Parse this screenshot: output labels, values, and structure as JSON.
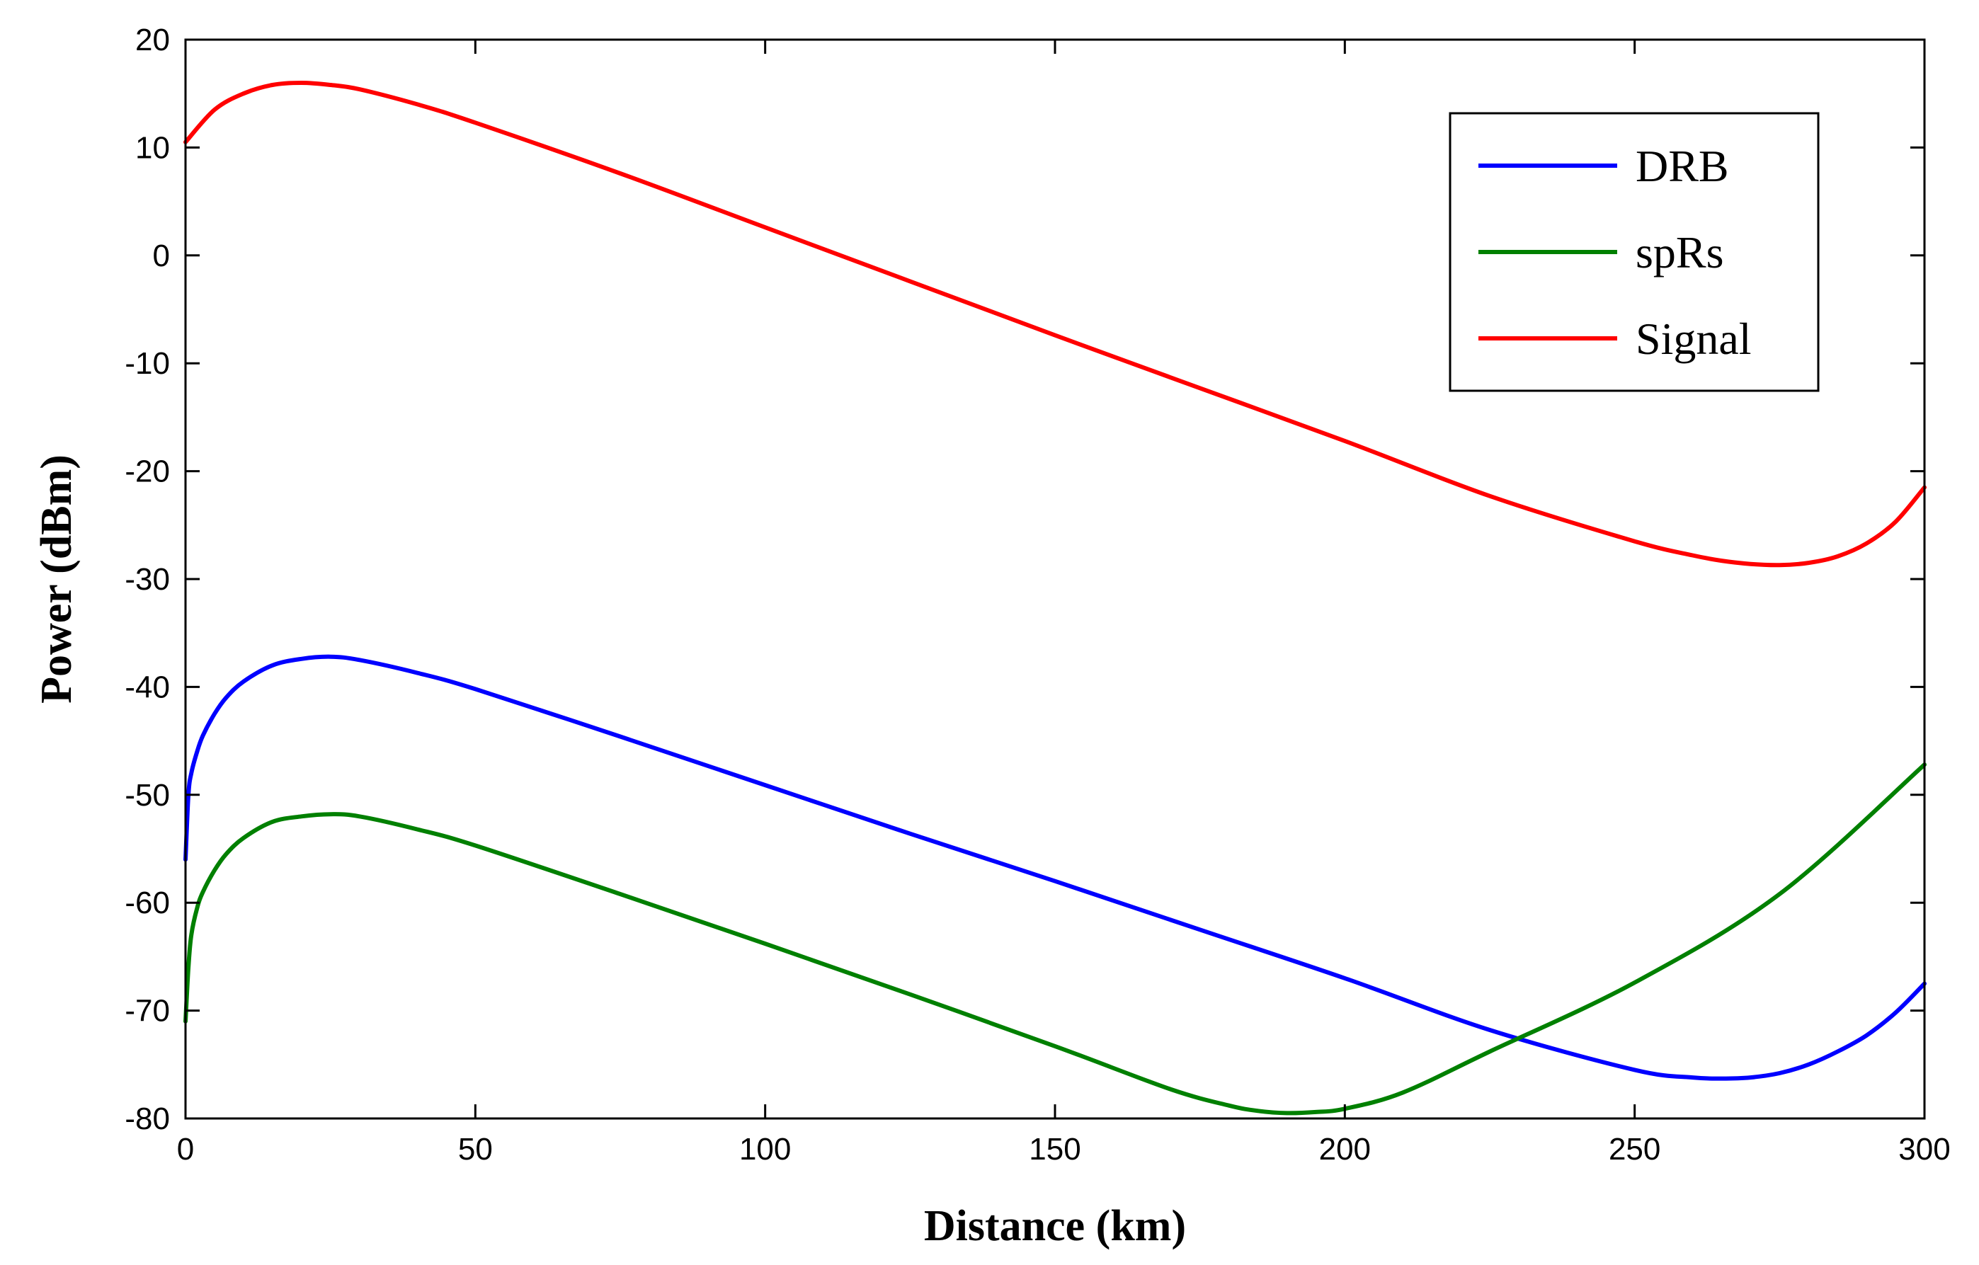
{
  "chart_data": {
    "type": "line",
    "title": "",
    "xlabel": "Distance (km)",
    "ylabel": "Power (dBm)",
    "xlim": [
      0,
      300
    ],
    "ylim": [
      -80,
      20
    ],
    "xticks": [
      0,
      50,
      100,
      150,
      200,
      250,
      300
    ],
    "yticks": [
      20,
      10,
      0,
      -10,
      -20,
      -30,
      -40,
      -50,
      -60,
      -70,
      -80
    ],
    "grid": false,
    "legend_position": "top-right",
    "series": [
      {
        "name": "DRB",
        "color": "#0000ff",
        "x": [
          0,
          0.5,
          1,
          2,
          3,
          5,
          7,
          10,
          15,
          20,
          25,
          30,
          40,
          50,
          75,
          100,
          125,
          150,
          175,
          200,
          225,
          250,
          260,
          265,
          270,
          275,
          280,
          285,
          290,
          295,
          300
        ],
        "y": [
          -56,
          -50,
          -48,
          -46,
          -44.5,
          -42.5,
          -41,
          -39.5,
          -38,
          -37.4,
          -37.2,
          -37.5,
          -38.7,
          -40.2,
          -44.6,
          -49.1,
          -53.6,
          -58,
          -62.5,
          -67,
          -71.8,
          -75.5,
          -76.2,
          -76.3,
          -76.2,
          -75.8,
          -75,
          -73.8,
          -72.3,
          -70.2,
          -67.5
        ]
      },
      {
        "name": "spRs",
        "color": "#008000",
        "x": [
          0,
          0.5,
          1,
          2,
          3,
          5,
          7,
          10,
          15,
          20,
          25,
          30,
          40,
          50,
          75,
          100,
          125,
          150,
          170,
          180,
          185,
          190,
          195,
          200,
          210,
          225,
          250,
          275,
          300
        ],
        "y": [
          -71,
          -66,
          -63,
          -60.5,
          -59,
          -57,
          -55.5,
          -54,
          -52.5,
          -52,
          -51.8,
          -52,
          -53.2,
          -54.7,
          -59.2,
          -63.8,
          -68.5,
          -73.3,
          -77.3,
          -78.8,
          -79.3,
          -79.5,
          -79.4,
          -79.1,
          -77.6,
          -73.8,
          -67.4,
          -59.2,
          -47.2
        ]
      },
      {
        "name": "Signal",
        "color": "#ff0000",
        "x": [
          0,
          5,
          10,
          15,
          20,
          25,
          30,
          40,
          50,
          75,
          100,
          125,
          150,
          175,
          200,
          225,
          250,
          260,
          265,
          270,
          275,
          280,
          285,
          290,
          295,
          300
        ],
        "y": [
          10.5,
          13.5,
          15,
          15.8,
          16,
          15.8,
          15.4,
          14,
          12.3,
          7.6,
          2.6,
          -2.4,
          -7.4,
          -12.3,
          -17.2,
          -22.3,
          -26.5,
          -27.8,
          -28.3,
          -28.6,
          -28.7,
          -28.5,
          -27.9,
          -26.7,
          -24.7,
          -21.5
        ]
      }
    ]
  }
}
